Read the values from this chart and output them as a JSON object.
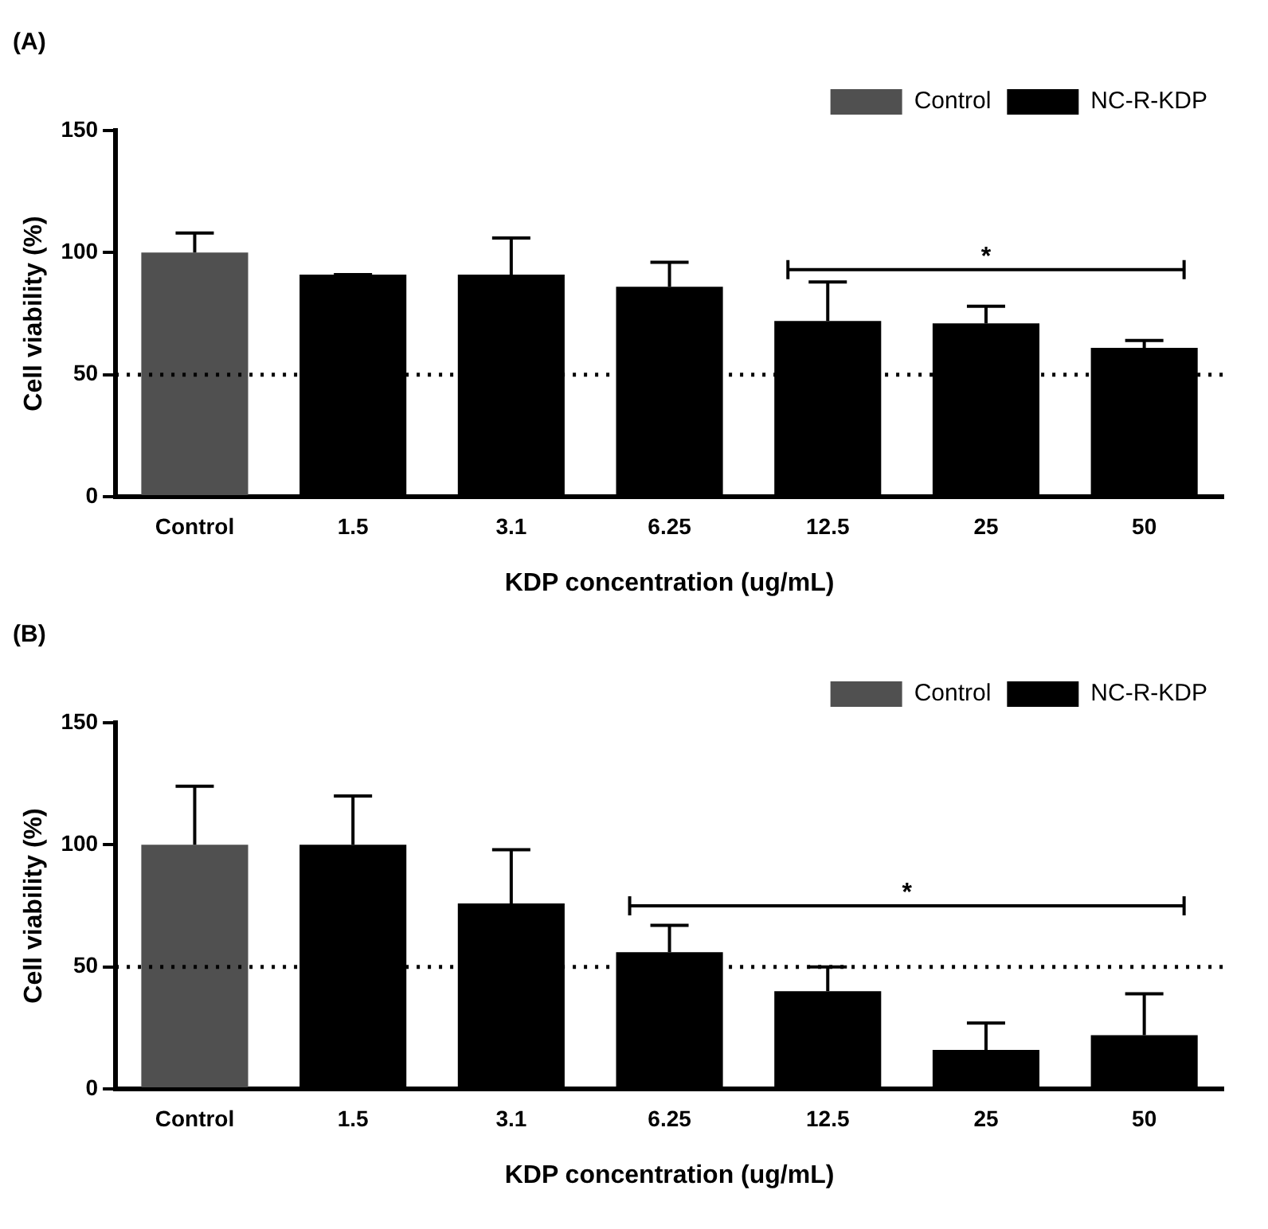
{
  "chart_data": [
    {
      "type": "bar",
      "title": "(A)",
      "xlabel": "KDP concentration (ug/mL)",
      "ylabel": "Cell viability (%)",
      "categories": [
        "Control",
        "1.5",
        "3.1",
        "6.25",
        "12.5",
        "25",
        "50"
      ],
      "series": [
        {
          "name": "Control",
          "color": "#505050",
          "values": [
            100,
            null,
            null,
            null,
            null,
            null,
            null
          ],
          "errors": [
            [
              100,
              108
            ],
            null,
            null,
            null,
            null,
            null,
            null
          ]
        },
        {
          "name": "NC-R-KDP",
          "color": "#000000",
          "values": [
            null,
            91,
            91,
            86,
            72,
            71,
            61
          ],
          "errors": [
            null,
            [
              91,
              91
            ],
            [
              91,
              106
            ],
            [
              86,
              96
            ],
            [
              72,
              88
            ],
            [
              71,
              78
            ],
            [
              61,
              64
            ]
          ]
        }
      ],
      "stacked": true,
      "ylim": [
        0,
        150
      ],
      "yticks": [
        0,
        50,
        100,
        150
      ],
      "grid": false,
      "legend": "top right",
      "ref_lines": [
        {
          "axis": "y",
          "value": 50,
          "line_style": "dotted",
          "color": "#000000"
        }
      ],
      "annotations": [
        "*"
      ]
    },
    {
      "type": "bar",
      "title": "(B)",
      "xlabel": "KDP concentration (ug/mL)",
      "ylabel": "Cell viability (%)",
      "categories": [
        "Control",
        "1.5",
        "3.1",
        "6.25",
        "12.5",
        "25",
        "50"
      ],
      "series": [
        {
          "name": "Control",
          "color": "#505050",
          "values": [
            100,
            null,
            null,
            null,
            null,
            null,
            null
          ],
          "errors": [
            [
              100,
              124
            ],
            null,
            null,
            null,
            null,
            null,
            null
          ]
        },
        {
          "name": "NC-R-KDP",
          "color": "#000000",
          "values": [
            null,
            100,
            76,
            56,
            40,
            16,
            22
          ],
          "errors": [
            null,
            [
              100,
              120
            ],
            [
              76,
              98
            ],
            [
              56,
              67
            ],
            [
              40,
              50
            ],
            [
              16,
              27
            ],
            [
              22,
              39
            ]
          ]
        }
      ],
      "stacked": true,
      "ylim": [
        0,
        150
      ],
      "yticks": [
        0,
        50,
        100,
        150
      ],
      "grid": false,
      "legend": "top right",
      "ref_lines": [
        {
          "axis": "y",
          "value": 50,
          "line_style": "dotted",
          "color": "#000000"
        }
      ],
      "annotations": [
        "*"
      ]
    }
  ]
}
